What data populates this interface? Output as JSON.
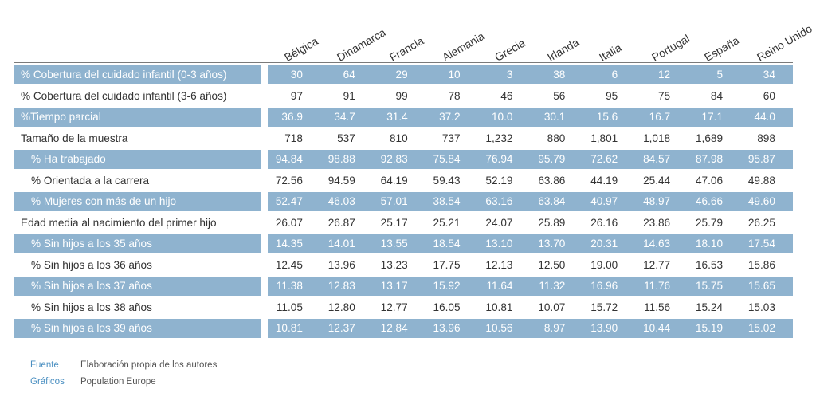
{
  "columns": [
    "Bélgica",
    "Dinamarca",
    "Francia",
    "Alemania",
    "Grecia",
    "Irlanda",
    "Italia",
    "Portugal",
    "España",
    "Reino Unido"
  ],
  "rows": [
    {
      "label": "% Cobertura del cuidado infantil (0-3 años)",
      "shaded": true,
      "indent": false,
      "values": [
        "30",
        "64",
        "29",
        "10",
        "3",
        "38",
        "6",
        "12",
        "5",
        "34"
      ]
    },
    {
      "label": "% Cobertura del cuidado infantil (3-6 años)",
      "shaded": false,
      "indent": false,
      "values": [
        "97",
        "91",
        "99",
        "78",
        "46",
        "56",
        "95",
        "75",
        "84",
        "60"
      ]
    },
    {
      "label": "%Tiempo parcial",
      "shaded": true,
      "indent": false,
      "values": [
        "36.9",
        "34.7",
        "31.4",
        "37.2",
        "10.0",
        "30.1",
        "15.6",
        "16.7",
        "17.1",
        "44.0"
      ]
    },
    {
      "label": "Tamaño de la muestra",
      "shaded": false,
      "indent": false,
      "values": [
        "718",
        "537",
        "810",
        "737",
        "1,232",
        "880",
        "1,801",
        "1,018",
        "1,689",
        "898"
      ]
    },
    {
      "label": "% Ha trabajado",
      "shaded": true,
      "indent": true,
      "values": [
        "94.84",
        "98.88",
        "92.83",
        "75.84",
        "76.94",
        "95.79",
        "72.62",
        "84.57",
        "87.98",
        "95.87"
      ]
    },
    {
      "label": "% Orientada a la carrera",
      "shaded": false,
      "indent": true,
      "values": [
        "72.56",
        "94.59",
        "64.19",
        "59.43",
        "52.19",
        "63.86",
        "44.19",
        "25.44",
        "47.06",
        "49.88"
      ]
    },
    {
      "label": "% Mujeres con más de un hijo",
      "shaded": true,
      "indent": true,
      "values": [
        "52.47",
        "46.03",
        "57.01",
        "38.54",
        "63.16",
        "63.84",
        "40.97",
        "48.97",
        "46.66",
        "49.60"
      ]
    },
    {
      "label": "Edad media al nacimiento del primer hijo",
      "shaded": false,
      "indent": false,
      "values": [
        "26.07",
        "26.87",
        "25.17",
        "25.21",
        "24.07",
        "25.89",
        "26.16",
        "23.86",
        "25.79",
        "26.25"
      ]
    },
    {
      "label": "% Sin hijos a los 35 años",
      "shaded": true,
      "indent": true,
      "values": [
        "14.35",
        "14.01",
        "13.55",
        "18.54",
        "13.10",
        "13.70",
        "20.31",
        "14.63",
        "18.10",
        "17.54"
      ]
    },
    {
      "label": "% Sin hijos a los 36 años",
      "shaded": false,
      "indent": true,
      "values": [
        "12.45",
        "13.96",
        "13.23",
        "17.75",
        "12.13",
        "12.50",
        "19.00",
        "12.77",
        "16.53",
        "15.86"
      ]
    },
    {
      "label": "% Sin hijos a los 37 años",
      "shaded": true,
      "indent": true,
      "values": [
        "11.38",
        "12.83",
        "13.17",
        "15.92",
        "11.64",
        "11.32",
        "16.96",
        "11.76",
        "15.75",
        "15.65"
      ]
    },
    {
      "label": "% Sin hijos a los 38 años",
      "shaded": false,
      "indent": true,
      "values": [
        "11.05",
        "12.80",
        "12.77",
        "16.05",
        "10.81",
        "10.07",
        "15.72",
        "11.56",
        "15.24",
        "15.03"
      ]
    },
    {
      "label": "% Sin hijos a los 39 años",
      "shaded": true,
      "indent": true,
      "values": [
        "10.81",
        "12.37",
        "12.84",
        "13.96",
        "10.56",
        "8.97",
        "13.90",
        "10.44",
        "15.19",
        "15.02"
      ]
    }
  ],
  "footer": {
    "source_key": "Fuente",
    "source_value": "Elaboración propia de los autores",
    "graphics_key": "Gráficos",
    "graphics_value": "Population Europe"
  },
  "colors": {
    "shade": "#8fb3cf",
    "footer_key": "#4a8fc1"
  }
}
